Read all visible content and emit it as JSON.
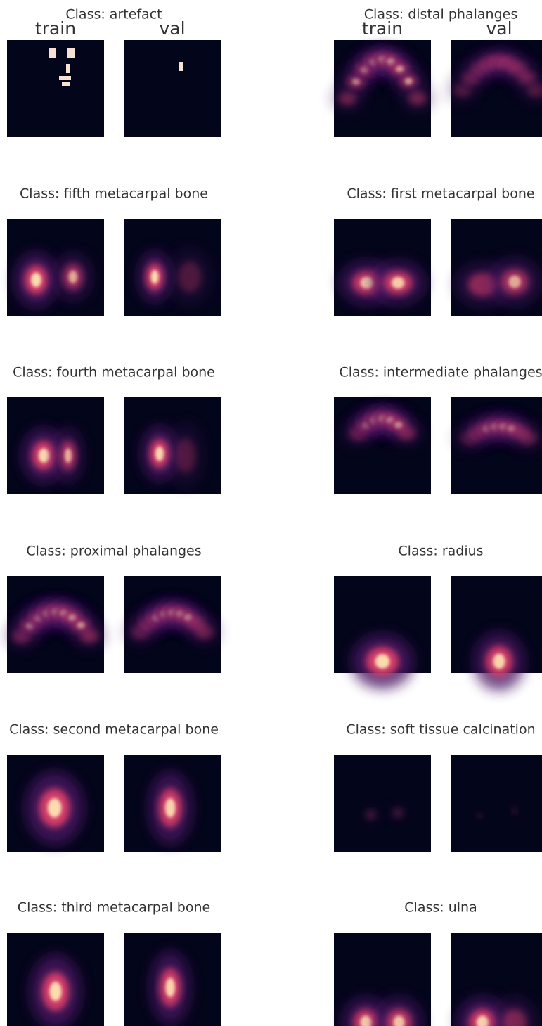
{
  "columns": [
    "train",
    "val"
  ],
  "panels": [
    {
      "title": "Class: artefact"
    },
    {
      "title": "Class: distal phalanges"
    },
    {
      "title": "Class: fifth metacarpal bone"
    },
    {
      "title": "Class: first metacarpal bone"
    },
    {
      "title": "Class: fourth metacarpal bone"
    },
    {
      "title": "Class: intermediate phalanges"
    },
    {
      "title": "Class: proximal phalanges"
    },
    {
      "title": "Class: radius"
    },
    {
      "title": "Class: second metacarpal bone"
    },
    {
      "title": "Class: soft tissue calcination"
    },
    {
      "title": "Class: third metacarpal bone"
    },
    {
      "title": "Class: ulna"
    }
  ]
}
